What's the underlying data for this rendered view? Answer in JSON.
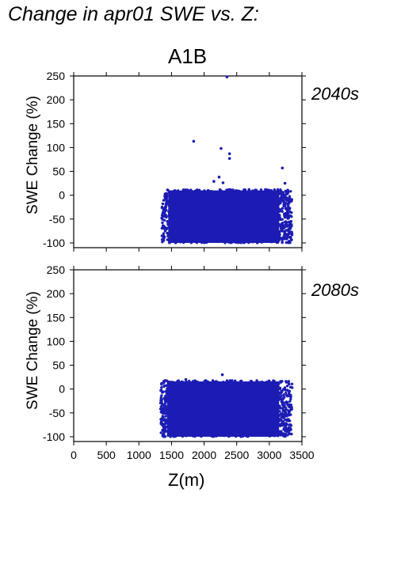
{
  "figure": {
    "title": "Change in apr01 SWE vs. Z:",
    "scenario": "A1B",
    "xlabel": "Z(m)"
  },
  "chart_data": [
    {
      "type": "scatter",
      "panel_label": "2040s",
      "ylabel": "SWE Change (%)",
      "xlim": [
        0,
        3500
      ],
      "ylim": [
        -110,
        250
      ],
      "x_ticks": [
        0,
        500,
        1000,
        1500,
        2000,
        2500,
        3000,
        3500
      ],
      "y_ticks": [
        -100,
        -50,
        0,
        50,
        100,
        150,
        200,
        250
      ],
      "x_tick_labels_shown": false,
      "point_color": "#1c1cb4",
      "dense_region": {
        "x": [
          1350,
          3350
        ],
        "y_min": -100,
        "y_max": 12
      },
      "outliers": [
        {
          "x": 2350,
          "y": 248
        },
        {
          "x": 1840,
          "y": 113
        },
        {
          "x": 2260,
          "y": 98
        },
        {
          "x": 2390,
          "y": 87
        },
        {
          "x": 2390,
          "y": 77
        },
        {
          "x": 3200,
          "y": 57
        },
        {
          "x": 2230,
          "y": 38
        },
        {
          "x": 2150,
          "y": 29
        },
        {
          "x": 2290,
          "y": 26
        },
        {
          "x": 3240,
          "y": 25
        },
        {
          "x": 3340,
          "y": -65
        },
        {
          "x": 3310,
          "y": -88
        },
        {
          "x": 3120,
          "y": -99
        }
      ]
    },
    {
      "type": "scatter",
      "panel_label": "2080s",
      "ylabel": "SWE Change (%)",
      "xlim": [
        0,
        3500
      ],
      "ylim": [
        -110,
        250
      ],
      "x_ticks": [
        0,
        500,
        1000,
        1500,
        2000,
        2500,
        3000,
        3500
      ],
      "y_ticks": [
        -100,
        -50,
        0,
        50,
        100,
        150,
        200,
        250
      ],
      "x_tick_labels_shown": true,
      "point_color": "#1c1cb4",
      "dense_region": {
        "x": [
          1330,
          3350
        ],
        "y_min": -100,
        "y_max": 18
      },
      "outliers": [
        {
          "x": 2280,
          "y": 30
        },
        {
          "x": 1720,
          "y": 20
        },
        {
          "x": 1850,
          "y": 12
        },
        {
          "x": 1600,
          "y": -5
        },
        {
          "x": 1560,
          "y": -15
        },
        {
          "x": 3350,
          "y": 3
        },
        {
          "x": 3330,
          "y": -85
        },
        {
          "x": 3210,
          "y": -97
        }
      ]
    }
  ]
}
